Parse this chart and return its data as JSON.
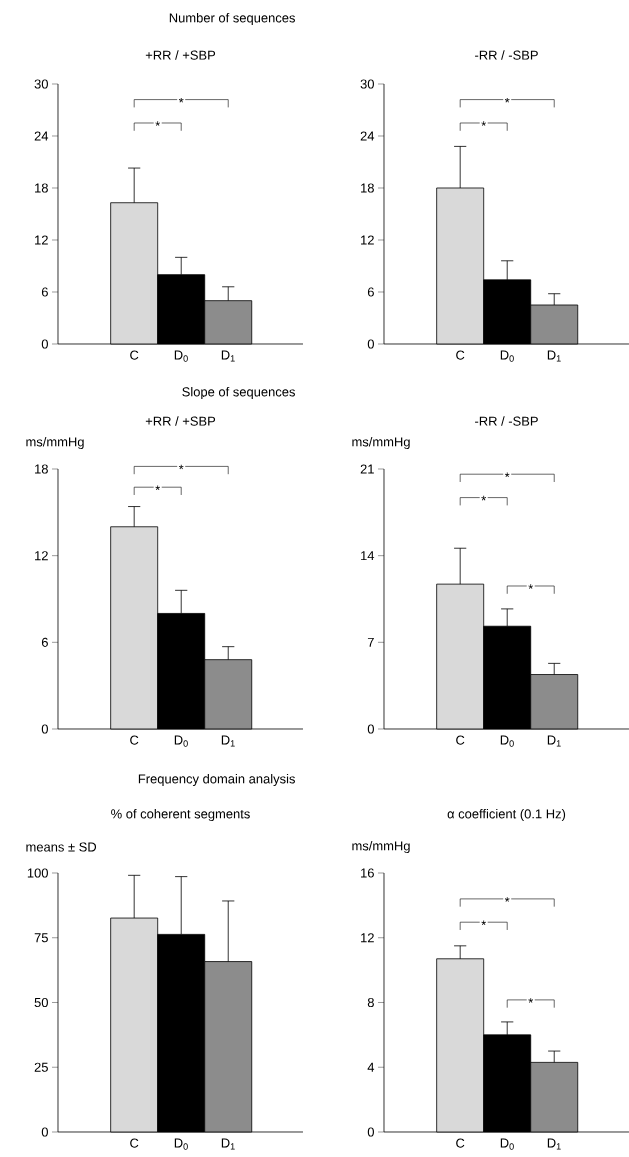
{
  "chart_data": [
    {
      "type": "bar",
      "title": "Number of sequences",
      "subtitle": "+RR / +SBP",
      "categories": [
        "C",
        "D$_{0}$",
        "D$_{1}$"
      ],
      "values": [
        16.3,
        8.0,
        5.0
      ],
      "errors": [
        [
          16.3,
          20.3
        ],
        [
          8.0,
          10.0
        ],
        [
          5.0,
          6.6
        ]
      ],
      "colors": [
        "#d9d9d9",
        "#000000",
        "#8c8c8c"
      ],
      "ylim": [
        0,
        30
      ],
      "yticks": [
        0,
        6,
        12,
        18,
        24,
        30
      ],
      "annotations": [
        "*",
        "*"
      ]
    },
    {
      "type": "bar",
      "subtitle": "-RR / -SBP",
      "categories": [
        "C",
        "D$_{0}$",
        "D$_{1}$"
      ],
      "values": [
        18.0,
        7.4,
        4.5
      ],
      "errors": [
        [
          18.0,
          22.8
        ],
        [
          7.4,
          9.6
        ],
        [
          4.5,
          5.8
        ]
      ],
      "colors": [
        "#d9d9d9",
        "#000000",
        "#8c8c8c"
      ],
      "ylim": [
        0,
        30
      ],
      "yticks": [
        0,
        6,
        12,
        18,
        24,
        30
      ],
      "annotations": [
        "*",
        "*"
      ]
    },
    {
      "type": "bar",
      "title": "Slope of sequences",
      "subtitle": "+RR / +SBP",
      "ylabel": "ms/mmHg",
      "categories": [
        "C",
        "D$_{0}$",
        "D$_{1}$"
      ],
      "values": [
        14.0,
        8.0,
        4.8
      ],
      "errors": [
        [
          14.0,
          15.4
        ],
        [
          8.0,
          9.6
        ],
        [
          4.8,
          5.7
        ]
      ],
      "colors": [
        "#d9d9d9",
        "#000000",
        "#8c8c8c"
      ],
      "ylim": [
        0,
        18
      ],
      "yticks": [
        0,
        6,
        12,
        18
      ],
      "annotations": [
        "*",
        "*"
      ]
    },
    {
      "type": "bar",
      "subtitle": "-RR / -SBP",
      "ylabel": "ms/mmHg",
      "categories": [
        "C",
        "D$_{0}$",
        "D$_{1}$"
      ],
      "values": [
        11.7,
        8.3,
        4.4
      ],
      "errors": [
        [
          11.7,
          14.6
        ],
        [
          8.3,
          9.7
        ],
        [
          4.4,
          5.3
        ]
      ],
      "colors": [
        "#d9d9d9",
        "#000000",
        "#8c8c8c"
      ],
      "ylim": [
        0,
        21
      ],
      "yticks": [
        0,
        7,
        14,
        21
      ],
      "annotations": [
        "*",
        "*",
        "*"
      ]
    },
    {
      "type": "bar",
      "title": "Frequency domain analysis",
      "subtitle": "% of coherent segments",
      "ylabel": "means ± SD",
      "categories": [
        "C",
        "D$_{0}$",
        "D$_{1}$"
      ],
      "values": [
        82.6,
        76.3,
        65.8
      ],
      "errors": [
        [
          82.6,
          99.1
        ],
        [
          76.3,
          98.6
        ],
        [
          65.8,
          89.2
        ]
      ],
      "colors": [
        "#d9d9d9",
        "#000000",
        "#8c8c8c"
      ],
      "ylim": [
        0,
        100
      ],
      "yticks": [
        0,
        25,
        50,
        75,
        100
      ]
    },
    {
      "type": "bar",
      "subtitle": "α coefficient (0.1 Hz)",
      "ylabel": "ms/mmHg",
      "categories": [
        "C",
        "D$_{0}$",
        "D$_{1}$"
      ],
      "values": [
        10.7,
        6.0,
        4.3
      ],
      "errors": [
        [
          10.7,
          11.5
        ],
        [
          6.0,
          6.8
        ],
        [
          4.3,
          5.0
        ]
      ],
      "colors": [
        "#d9d9d9",
        "#000000",
        "#8c8c8c"
      ],
      "ylim": [
        0,
        16
      ],
      "yticks": [
        0,
        4,
        8,
        12,
        16
      ],
      "annotations": [
        "*",
        "*",
        "*"
      ]
    }
  ]
}
